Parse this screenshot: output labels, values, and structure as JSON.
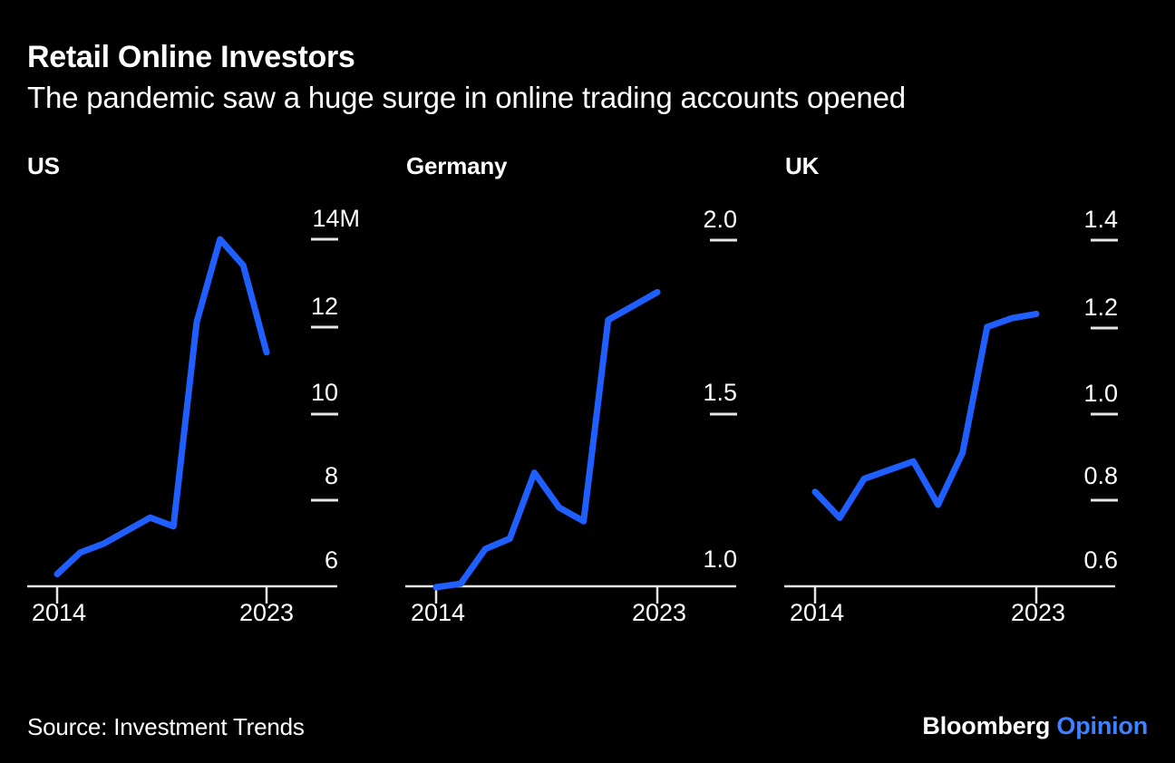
{
  "header": {
    "title": "Retail Online Investors",
    "subtitle": "The pandemic saw a huge surge in online trading accounts opened"
  },
  "footer": {
    "source": "Source: Investment Trends",
    "brand": "Bloomberg",
    "brand_suffix": "Opinion"
  },
  "colors": {
    "background": "#000000",
    "line_blue": "#1F5FFF",
    "axis": "#E6E6E6",
    "text": "#FFFFFF",
    "brand_blue": "#3E82FF"
  },
  "chart_data": [
    {
      "type": "line",
      "title": "US",
      "x": [
        2014,
        2015,
        2016,
        2017,
        2018,
        2019,
        2020,
        2021,
        2022,
        2023
      ],
      "values": [
        6.3,
        6.8,
        7.0,
        7.3,
        7.6,
        7.4,
        12.1,
        14.0,
        13.4,
        11.4
      ],
      "ytick_labels": [
        "6",
        "8",
        "10",
        "12",
        "14M"
      ],
      "yticks": [
        6,
        8,
        10,
        12,
        14
      ],
      "xtick_labels": [
        "2014",
        "2023"
      ],
      "ylim": [
        6,
        14.2
      ],
      "xlim": [
        2014,
        2023
      ],
      "grid": false,
      "legend": null
    },
    {
      "type": "line",
      "title": "Germany",
      "x": [
        2014,
        2015,
        2016,
        2017,
        2018,
        2019,
        2020,
        2021,
        2022,
        2023
      ],
      "values": [
        1.0,
        1.01,
        1.11,
        1.14,
        1.33,
        1.23,
        1.19,
        1.77,
        1.81,
        1.85
      ],
      "ytick_labels": [
        "1.0",
        "1.5",
        "2.0"
      ],
      "yticks": [
        1.0,
        1.5,
        2.0
      ],
      "xtick_labels": [
        "2014",
        "2023"
      ],
      "ylim": [
        1.0,
        2.0
      ],
      "xlim": [
        2014,
        2023
      ],
      "grid": false,
      "legend": null
    },
    {
      "type": "line",
      "title": "UK",
      "x": [
        2014,
        2015,
        2016,
        2017,
        2018,
        2019,
        2020,
        2021,
        2022,
        2023
      ],
      "values": [
        0.82,
        0.76,
        0.85,
        0.87,
        0.89,
        0.79,
        0.91,
        1.2,
        1.22,
        1.23
      ],
      "ytick_labels": [
        "0.6",
        "0.8",
        "1.0",
        "1.2",
        "1.4"
      ],
      "yticks": [
        0.6,
        0.8,
        1.0,
        1.2,
        1.4
      ],
      "xtick_labels": [
        "2014",
        "2023"
      ],
      "ylim": [
        0.6,
        1.4
      ],
      "xlim": [
        2014,
        2023
      ],
      "grid": false,
      "legend": null
    }
  ]
}
